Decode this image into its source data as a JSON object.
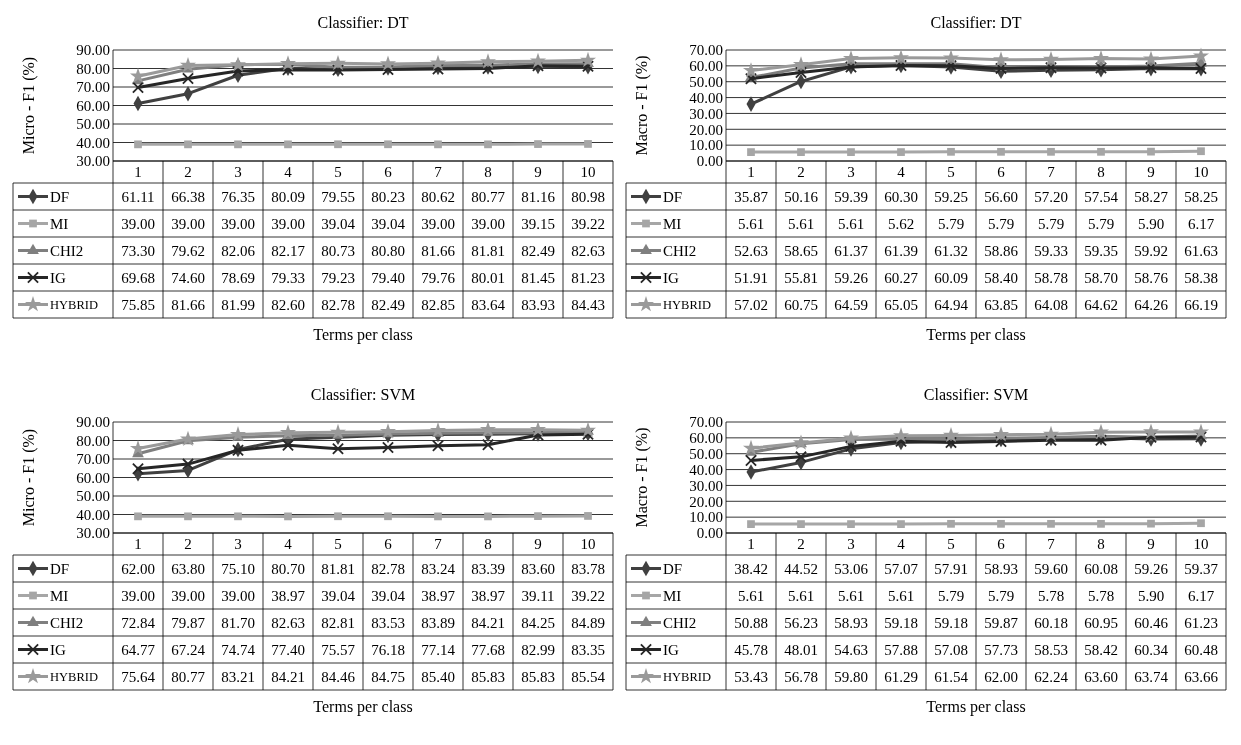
{
  "chart_data": [
    {
      "type": "line",
      "title": "Classifier:  DT",
      "xlabel": "Terms per class",
      "ylabel": "Micro - F1 (%)",
      "categories": [
        "1",
        "2",
        "3",
        "4",
        "5",
        "6",
        "7",
        "8",
        "9",
        "10"
      ],
      "ylim": [
        30,
        90
      ],
      "yticks": [
        {
          "value": 30,
          "label": "30.00"
        },
        {
          "value": 40,
          "label": "40.00"
        },
        {
          "value": 50,
          "label": "50.00"
        },
        {
          "value": 60,
          "label": "60.00"
        },
        {
          "value": 70,
          "label": "70.00"
        },
        {
          "value": 80,
          "label": "80.00"
        },
        {
          "value": 90,
          "label": "90.00"
        }
      ],
      "grid": "y",
      "legend": "bottom",
      "data_labels": true,
      "series": [
        {
          "name": "DF",
          "color": "#404040",
          "marker": "diamond",
          "values": [
            61.11,
            66.38,
            76.35,
            80.09,
            79.55,
            80.23,
            80.62,
            80.77,
            81.16,
            80.98
          ],
          "value_labels": [
            "61.11",
            "66.38",
            "76.35",
            "80.09",
            "79.55",
            "80.23",
            "80.62",
            "80.77",
            "81.16",
            "80.98"
          ]
        },
        {
          "name": "MI",
          "color": "#a6a6a6",
          "marker": "square",
          "values": [
            39.0,
            39.0,
            39.0,
            39.0,
            39.04,
            39.04,
            39.0,
            39.0,
            39.15,
            39.22
          ],
          "value_labels": [
            "39.00",
            "39.00",
            "39.00",
            "39.00",
            "39.04",
            "39.04",
            "39.00",
            "39.00",
            "39.15",
            "39.22"
          ]
        },
        {
          "name": "CHI2",
          "color": "#7f7f7f",
          "marker": "triangle",
          "values": [
            73.3,
            79.62,
            82.06,
            82.17,
            80.73,
            80.8,
            81.66,
            81.81,
            82.49,
            82.63
          ],
          "value_labels": [
            "73.30",
            "79.62",
            "82.06",
            "82.17",
            "80.73",
            "80.80",
            "81.66",
            "81.81",
            "82.49",
            "82.63"
          ]
        },
        {
          "name": "IG",
          "color": "#262626",
          "marker": "cross",
          "values": [
            69.68,
            74.6,
            78.69,
            79.33,
            79.23,
            79.4,
            79.76,
            80.01,
            81.45,
            81.23
          ],
          "value_labels": [
            "69.68",
            "74.60",
            "78.69",
            "79.33",
            "79.23",
            "79.40",
            "79.76",
            "80.01",
            "81.45",
            "81.23"
          ]
        },
        {
          "name": "HYBRID",
          "color": "#9a9a9a",
          "marker": "star",
          "values": [
            75.85,
            81.66,
            81.99,
            82.6,
            82.78,
            82.49,
            82.85,
            83.64,
            83.93,
            84.43
          ],
          "value_labels": [
            "75.85",
            "81.66",
            "81.99",
            "82.60",
            "82.78",
            "82.49",
            "82.85",
            "83.64",
            "83.93",
            "84.43"
          ]
        }
      ]
    },
    {
      "type": "line",
      "title": "Classifier:  DT",
      "xlabel": "Terms per class",
      "ylabel": "Macro - F1 (%)",
      "categories": [
        "1",
        "2",
        "3",
        "4",
        "5",
        "6",
        "7",
        "8",
        "9",
        "10"
      ],
      "ylim": [
        0,
        70
      ],
      "yticks": [
        {
          "value": 0,
          "label": "0.00"
        },
        {
          "value": 10,
          "label": "10.00"
        },
        {
          "value": 20,
          "label": "20.00"
        },
        {
          "value": 30,
          "label": "30.00"
        },
        {
          "value": 40,
          "label": "40.00"
        },
        {
          "value": 50,
          "label": "50.00"
        },
        {
          "value": 60,
          "label": "60.00"
        },
        {
          "value": 70,
          "label": "70.00"
        }
      ],
      "grid": "y",
      "legend": "bottom",
      "data_labels": true,
      "series": [
        {
          "name": "DF",
          "color": "#404040",
          "marker": "diamond",
          "values": [
            35.87,
            50.16,
            59.39,
            60.3,
            59.25,
            56.6,
            57.2,
            57.54,
            58.27,
            58.25
          ],
          "value_labels": [
            "35.87",
            "50.16",
            "59.39",
            "60.30",
            "59.25",
            "56.60",
            "57.20",
            "57.54",
            "58.27",
            "58.25"
          ]
        },
        {
          "name": "MI",
          "color": "#a6a6a6",
          "marker": "square",
          "values": [
            5.61,
            5.61,
            5.61,
            5.62,
            5.79,
            5.79,
            5.79,
            5.79,
            5.9,
            6.17
          ],
          "value_labels": [
            "5.61",
            "5.61",
            "5.61",
            "5.62",
            "5.79",
            "5.79",
            "5.79",
            "5.79",
            "5.90",
            "6.17"
          ]
        },
        {
          "name": "CHI2",
          "color": "#7f7f7f",
          "marker": "triangle",
          "values": [
            52.63,
            58.65,
            61.37,
            61.39,
            61.32,
            58.86,
            59.33,
            59.35,
            59.92,
            61.63
          ],
          "value_labels": [
            "52.63",
            "58.65",
            "61.37",
            "61.39",
            "61.32",
            "58.86",
            "59.33",
            "59.35",
            "59.92",
            "61.63"
          ]
        },
        {
          "name": "IG",
          "color": "#262626",
          "marker": "cross",
          "values": [
            51.91,
            55.81,
            59.26,
            60.27,
            60.09,
            58.4,
            58.78,
            58.7,
            58.76,
            58.38
          ],
          "value_labels": [
            "51.91",
            "55.81",
            "59.26",
            "60.27",
            "60.09",
            "58.40",
            "58.78",
            "58.70",
            "58.76",
            "58.38"
          ]
        },
        {
          "name": "HYBRID",
          "color": "#9a9a9a",
          "marker": "star",
          "values": [
            57.02,
            60.75,
            64.59,
            65.05,
            64.94,
            63.85,
            64.08,
            64.62,
            64.26,
            66.19
          ],
          "value_labels": [
            "57.02",
            "60.75",
            "64.59",
            "65.05",
            "64.94",
            "63.85",
            "64.08",
            "64.62",
            "64.26",
            "66.19"
          ]
        }
      ]
    },
    {
      "type": "line",
      "title": "Classifier:  SVM",
      "xlabel": "Terms per class",
      "ylabel": "Micro - F1 (%)",
      "categories": [
        "1",
        "2",
        "3",
        "4",
        "5",
        "6",
        "7",
        "8",
        "9",
        "10"
      ],
      "ylim": [
        30,
        90
      ],
      "yticks": [
        {
          "value": 30,
          "label": "30.00"
        },
        {
          "value": 40,
          "label": "40.00"
        },
        {
          "value": 50,
          "label": "50.00"
        },
        {
          "value": 60,
          "label": "60.00"
        },
        {
          "value": 70,
          "label": "70.00"
        },
        {
          "value": 80,
          "label": "80.00"
        },
        {
          "value": 90,
          "label": "90.00"
        }
      ],
      "grid": "y",
      "legend": "bottom",
      "data_labels": true,
      "series": [
        {
          "name": "DF",
          "color": "#404040",
          "marker": "diamond",
          "values": [
            62.0,
            63.8,
            75.1,
            80.7,
            81.81,
            82.78,
            83.24,
            83.39,
            83.6,
            83.78
          ],
          "value_labels": [
            "62.00",
            "63.80",
            "75.10",
            "80.70",
            "81.81",
            "82.78",
            "83.24",
            "83.39",
            "83.60",
            "83.78"
          ]
        },
        {
          "name": "MI",
          "color": "#a6a6a6",
          "marker": "square",
          "values": [
            39.0,
            39.0,
            39.0,
            38.97,
            39.04,
            39.04,
            38.97,
            38.97,
            39.11,
            39.22
          ],
          "value_labels": [
            "39.00",
            "39.00",
            "39.00",
            "38.97",
            "39.04",
            "39.04",
            "38.97",
            "38.97",
            "39.11",
            "39.22"
          ]
        },
        {
          "name": "CHI2",
          "color": "#7f7f7f",
          "marker": "triangle",
          "values": [
            72.84,
            79.87,
            81.7,
            82.63,
            82.81,
            83.53,
            83.89,
            84.21,
            84.25,
            84.89
          ],
          "value_labels": [
            "72.84",
            "79.87",
            "81.70",
            "82.63",
            "82.81",
            "83.53",
            "83.89",
            "84.21",
            "84.25",
            "84.89"
          ]
        },
        {
          "name": "IG",
          "color": "#262626",
          "marker": "cross",
          "values": [
            64.77,
            67.24,
            74.74,
            77.4,
            75.57,
            76.18,
            77.14,
            77.68,
            82.99,
            83.35
          ],
          "value_labels": [
            "64.77",
            "67.24",
            "74.74",
            "77.40",
            "75.57",
            "76.18",
            "77.14",
            "77.68",
            "82.99",
            "83.35"
          ]
        },
        {
          "name": "HYBRID",
          "color": "#9a9a9a",
          "marker": "star",
          "values": [
            75.64,
            80.77,
            83.21,
            84.21,
            84.46,
            84.75,
            85.4,
            85.83,
            85.83,
            85.54
          ],
          "value_labels": [
            "75.64",
            "80.77",
            "83.21",
            "84.21",
            "84.46",
            "84.75",
            "85.40",
            "85.83",
            "85.83",
            "85.54"
          ]
        }
      ]
    },
    {
      "type": "line",
      "title": "Classifier:  SVM",
      "xlabel": "Terms per class",
      "ylabel": "Macro - F1 (%)",
      "categories": [
        "1",
        "2",
        "3",
        "4",
        "5",
        "6",
        "7",
        "8",
        "9",
        "10"
      ],
      "ylim": [
        0,
        70
      ],
      "yticks": [
        {
          "value": 0,
          "label": "0.00"
        },
        {
          "value": 10,
          "label": "10.00"
        },
        {
          "value": 20,
          "label": "20.00"
        },
        {
          "value": 30,
          "label": "30.00"
        },
        {
          "value": 40,
          "label": "40.00"
        },
        {
          "value": 50,
          "label": "50.00"
        },
        {
          "value": 60,
          "label": "60.00"
        },
        {
          "value": 70,
          "label": "70.00"
        }
      ],
      "grid": "y",
      "legend": "bottom",
      "data_labels": true,
      "series": [
        {
          "name": "DF",
          "color": "#404040",
          "marker": "diamond",
          "values": [
            38.42,
            44.52,
            53.06,
            57.07,
            57.91,
            58.93,
            59.6,
            60.08,
            59.26,
            59.37
          ],
          "value_labels": [
            "38.42",
            "44.52",
            "53.06",
            "57.07",
            "57.91",
            "58.93",
            "59.60",
            "60.08",
            "59.26",
            "59.37"
          ]
        },
        {
          "name": "MI",
          "color": "#a6a6a6",
          "marker": "square",
          "values": [
            5.61,
            5.61,
            5.61,
            5.61,
            5.79,
            5.79,
            5.78,
            5.78,
            5.9,
            6.17
          ],
          "value_labels": [
            "5.61",
            "5.61",
            "5.61",
            "5.61",
            "5.79",
            "5.79",
            "5.78",
            "5.78",
            "5.90",
            "6.17"
          ]
        },
        {
          "name": "CHI2",
          "color": "#7f7f7f",
          "marker": "triangle",
          "values": [
            50.88,
            56.23,
            58.93,
            59.18,
            59.18,
            59.87,
            60.18,
            60.95,
            60.46,
            61.23
          ],
          "value_labels": [
            "50.88",
            "56.23",
            "58.93",
            "59.18",
            "59.18",
            "59.87",
            "60.18",
            "60.95",
            "60.46",
            "61.23"
          ]
        },
        {
          "name": "IG",
          "color": "#262626",
          "marker": "cross",
          "values": [
            45.78,
            48.01,
            54.63,
            57.88,
            57.08,
            57.73,
            58.53,
            58.42,
            60.34,
            60.48
          ],
          "value_labels": [
            "45.78",
            "48.01",
            "54.63",
            "57.88",
            "57.08",
            "57.73",
            "58.53",
            "58.42",
            "60.34",
            "60.48"
          ]
        },
        {
          "name": "HYBRID",
          "color": "#9a9a9a",
          "marker": "star",
          "values": [
            53.43,
            56.78,
            59.8,
            61.29,
            61.54,
            62.0,
            62.24,
            63.6,
            63.74,
            63.66
          ],
          "value_labels": [
            "53.43",
            "56.78",
            "59.80",
            "61.29",
            "61.54",
            "62.00",
            "62.24",
            "63.60",
            "63.74",
            "63.66"
          ]
        }
      ]
    }
  ]
}
